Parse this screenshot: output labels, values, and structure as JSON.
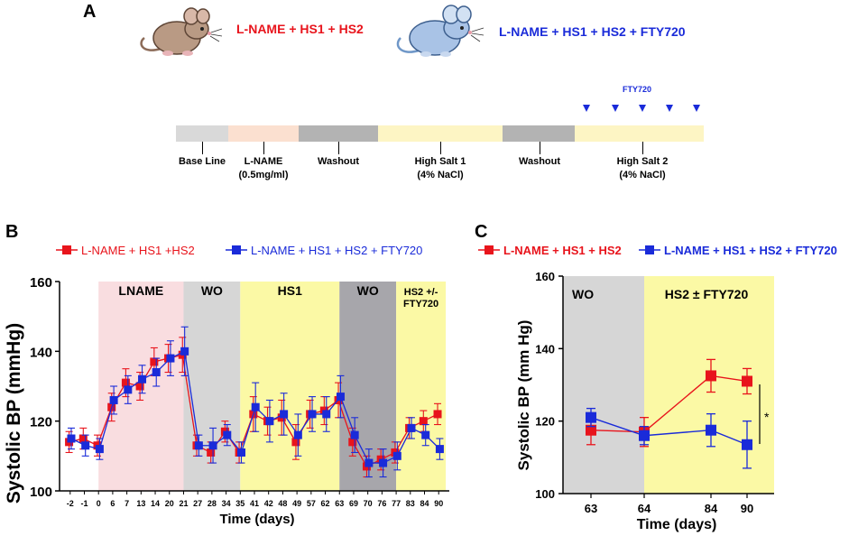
{
  "panelA": {
    "letter": "A",
    "group1": "L-NAME + HS1 + HS2",
    "group2": "L-NAME + HS1 + HS2 + FTY720",
    "fty_label": "FTY720",
    "segments": [
      {
        "name": "Base Line",
        "color": "#d9d9d9"
      },
      {
        "name": "L-NAME\n(0.5mg/ml)",
        "color": "#fbe0d0"
      },
      {
        "name": "Washout",
        "color": "#b3b3b3"
      },
      {
        "name": "High Salt 1\n(4%  NaCl)",
        "color": "#fdf5c4"
      },
      {
        "name": "Washout",
        "color": "#b3b3b3"
      },
      {
        "name": "High Salt 2\n(4%  NaCl)",
        "color": "#fdf5c4"
      }
    ]
  },
  "panelB": {
    "letter": "B",
    "legend_red": "L-NAME + HS1 +HS2",
    "legend_blue": "L-NAME + HS1 + HS2 + FTY720",
    "phase_labels": [
      "LNAME",
      "WO",
      "HS1",
      "WO",
      "HS2 +/-\nFTY720"
    ]
  },
  "panelC": {
    "letter": "C",
    "legend_red": "L-NAME + HS1 + HS2",
    "legend_blue": "L-NAME + HS1 + HS2 + FTY720",
    "phase_labels": [
      "WO",
      "HS2 ± FTY720"
    ],
    "sig": "*"
  },
  "colors": {
    "red": "#e8141c",
    "blue": "#1a2bd9",
    "pink": "#f9dde0",
    "grey": "#d6d6d6",
    "darkgrey": "#a7a6ab",
    "yellow": "#fbf9a5"
  },
  "chart_data": [
    {
      "type": "line",
      "title": "",
      "xlabel": "Time (days)",
      "ylabel": "Systolic BP (mmHg)",
      "ylim": [
        100,
        160
      ],
      "yticks": [
        100,
        120,
        140,
        160
      ],
      "categories": [
        "-2",
        "-1",
        "0",
        "6",
        "7",
        "13",
        "14",
        "20",
        "21",
        "27",
        "28",
        "34",
        "35",
        "41",
        "42",
        "48",
        "49",
        "57",
        "62",
        "63",
        "69",
        "70",
        "76",
        "77",
        "83",
        "84",
        "90"
      ],
      "series": [
        {
          "name": "L-NAME + HS1 +HS2",
          "color": "red",
          "values": [
            114,
            115,
            113,
            124,
            131,
            130,
            137,
            138,
            139,
            113,
            111,
            117,
            111,
            122,
            120,
            121,
            114,
            122,
            123,
            126,
            114,
            107,
            109,
            111,
            118,
            120,
            122
          ],
          "errors": [
            3,
            3,
            3,
            4,
            4,
            4,
            4,
            4,
            5,
            3,
            3,
            3,
            3,
            5,
            4,
            5,
            5,
            4,
            4,
            5,
            4,
            3,
            3,
            3,
            3,
            3,
            3
          ]
        },
        {
          "name": "L-NAME + HS1 + HS2 + FTY720",
          "color": "blue",
          "values": [
            115,
            113,
            112,
            126,
            129,
            132,
            134,
            138,
            140,
            113,
            113,
            116,
            111,
            124,
            120,
            122,
            116,
            122,
            122,
            127,
            116,
            108,
            108,
            110,
            118,
            116,
            112
          ],
          "errors": [
            3,
            3,
            3,
            4,
            4,
            4,
            4,
            5,
            7,
            3,
            5,
            3,
            3,
            7,
            6,
            6,
            6,
            5,
            5,
            6,
            5,
            4,
            4,
            4,
            3,
            3,
            3
          ]
        }
      ],
      "phases": [
        {
          "label": "LNAME",
          "from_index": 2,
          "to_index": 8,
          "color": "pink"
        },
        {
          "label": "WO",
          "from_index": 8,
          "to_index": 12,
          "color": "grey"
        },
        {
          "label": "HS1",
          "from_index": 12,
          "to_index": 19,
          "color": "yellow"
        },
        {
          "label": "WO",
          "from_index": 19,
          "to_index": 23,
          "color": "darkgrey"
        },
        {
          "label": "HS2 +/-\nFTY720",
          "from_index": 23,
          "to_index": 26.5,
          "color": "yellow"
        }
      ]
    },
    {
      "type": "line",
      "title": "",
      "xlabel": "Time (days)",
      "ylabel": "Systolic BP (mm Hg)",
      "ylim": [
        100,
        160
      ],
      "yticks": [
        100,
        120,
        140,
        160
      ],
      "categories": [
        "63",
        "64",
        "84",
        "90"
      ],
      "series": [
        {
          "name": "L-NAME + HS1 + HS2",
          "color": "red",
          "values": [
            117.5,
            117,
            132.5,
            131
          ],
          "errors": [
            4,
            4,
            4.5,
            3.5
          ]
        },
        {
          "name": "L-NAME + HS1 + HS2 + FTY720",
          "color": "blue",
          "values": [
            121,
            116,
            117.5,
            113.5
          ],
          "errors": [
            2.5,
            2.5,
            4.5,
            6.5
          ]
        }
      ],
      "phases": [
        {
          "label": "WO",
          "color": "grey"
        },
        {
          "label": "HS2 ± FTY720",
          "color": "yellow"
        }
      ]
    }
  ]
}
